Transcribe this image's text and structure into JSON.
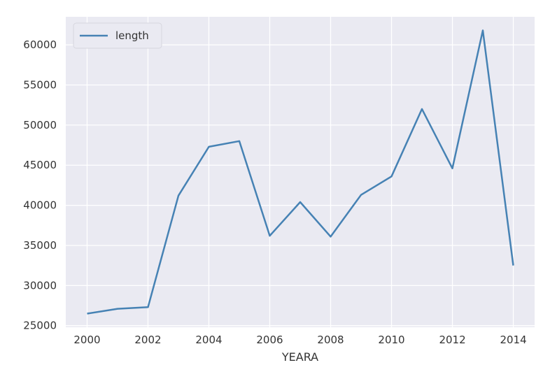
{
  "chart_data": {
    "type": "line",
    "title": "",
    "xlabel": "YEARA",
    "ylabel": "",
    "x": [
      2000,
      2001,
      2002,
      2003,
      2004,
      2005,
      2006,
      2007,
      2008,
      2009,
      2010,
      2011,
      2012,
      2013,
      2014
    ],
    "series": [
      {
        "name": "length",
        "color": "#4682b4",
        "values": [
          26500,
          27100,
          27300,
          41200,
          47300,
          48000,
          36200,
          40400,
          36100,
          41300,
          43600,
          52000,
          44600,
          61800,
          32500
        ]
      }
    ],
    "xlim": [
      1999.3,
      2014.7
    ],
    "ylim": [
      24800,
      63500
    ],
    "xticks": [
      2000,
      2002,
      2004,
      2006,
      2008,
      2010,
      2012,
      2014
    ],
    "yticks": [
      25000,
      30000,
      35000,
      40000,
      45000,
      50000,
      55000,
      60000
    ],
    "grid": true,
    "legend_position": "top-left",
    "background_color": "#eaeaf2",
    "grid_color": "#ffffff"
  }
}
